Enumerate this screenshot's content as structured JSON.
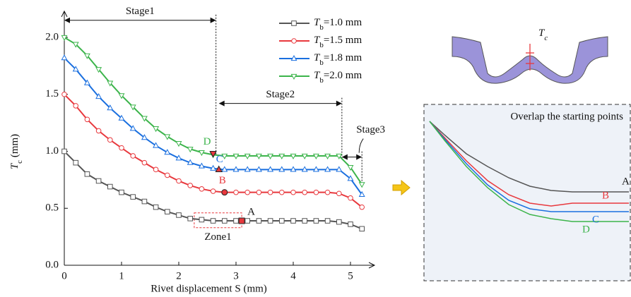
{
  "chart_data": {
    "type": "line",
    "x_label": "Rivet displacement S (mm)",
    "y_label": "Tc (mm)",
    "x": [
      0,
      0.2,
      0.4,
      0.6,
      0.8,
      1.0,
      1.2,
      1.4,
      1.6,
      1.8,
      2.0,
      2.2,
      2.4,
      2.6,
      2.8,
      3.0,
      3.2,
      3.4,
      3.6,
      3.8,
      4.0,
      4.2,
      4.4,
      4.6,
      4.8,
      5.0,
      5.2
    ],
    "series": [
      {
        "name": "Tb=1.0 mm",
        "color": "#555555",
        "marker": "square",
        "values": [
          1.0,
          0.9,
          0.8,
          0.74,
          0.69,
          0.64,
          0.6,
          0.56,
          0.51,
          0.47,
          0.44,
          0.41,
          0.4,
          0.39,
          0.39,
          0.39,
          0.39,
          0.39,
          0.39,
          0.39,
          0.39,
          0.39,
          0.39,
          0.39,
          0.38,
          0.36,
          0.32
        ]
      },
      {
        "name": "Tb=1.5 mm",
        "color": "#e8383d",
        "marker": "circle",
        "values": [
          1.5,
          1.4,
          1.28,
          1.18,
          1.1,
          1.03,
          0.96,
          0.9,
          0.84,
          0.79,
          0.74,
          0.7,
          0.67,
          0.65,
          0.64,
          0.64,
          0.64,
          0.64,
          0.64,
          0.64,
          0.64,
          0.64,
          0.64,
          0.64,
          0.63,
          0.59,
          0.51
        ]
      },
      {
        "name": "Tb=1.8 mm",
        "color": "#1a6fdf",
        "marker": "triangle-up",
        "values": [
          1.82,
          1.72,
          1.6,
          1.48,
          1.38,
          1.29,
          1.2,
          1.12,
          1.05,
          0.99,
          0.94,
          0.9,
          0.87,
          0.85,
          0.84,
          0.84,
          0.84,
          0.84,
          0.84,
          0.84,
          0.84,
          0.84,
          0.84,
          0.84,
          0.84,
          0.76,
          0.62
        ]
      },
      {
        "name": "Tb=2.0 mm",
        "color": "#3cb44b",
        "marker": "triangle-down",
        "values": [
          2.0,
          1.94,
          1.84,
          1.72,
          1.6,
          1.49,
          1.39,
          1.29,
          1.2,
          1.13,
          1.07,
          1.02,
          0.99,
          0.97,
          0.96,
          0.96,
          0.96,
          0.96,
          0.96,
          0.96,
          0.96,
          0.96,
          0.96,
          0.96,
          0.96,
          0.86,
          0.71
        ]
      }
    ],
    "xlim": [
      0,
      5.42
    ],
    "ylim": [
      0,
      2.23
    ],
    "xticks": [
      0,
      1,
      2,
      3,
      4,
      5
    ],
    "yticks": [
      {
        "value": 0,
        "label": "0.0"
      },
      0.5,
      {
        "value": 1,
        "label": "1.0"
      },
      1.5,
      {
        "value": 2,
        "label": "2.0"
      }
    ],
    "annotations": [
      {
        "text": "A",
        "x": 3.1,
        "y": 0.39,
        "marker": "square",
        "color": "#111111"
      },
      {
        "text": "B",
        "x": 2.8,
        "y": 0.64,
        "marker": "circle",
        "color": "#e8383d"
      },
      {
        "text": "C",
        "x": 2.7,
        "y": 0.84,
        "marker": "triangle-up",
        "color": "#1a6fdf"
      },
      {
        "text": "D",
        "x": 2.6,
        "y": 0.98,
        "marker": "triangle-down",
        "color": "#3cb44b"
      }
    ],
    "stages": [
      {
        "label": "Stage1",
        "x": [
          0,
          2.65
        ],
        "y": 2.15
      },
      {
        "label": "Stage2",
        "x": [
          2.7,
          4.85
        ],
        "y": 1.42
      },
      {
        "label": "Stage3",
        "x": [
          4.85,
          5.2
        ],
        "y": 0.95
      }
    ],
    "zone": {
      "label": "Zone1",
      "x": [
        2.27,
        3.1
      ],
      "y": [
        0.33,
        0.46
      ]
    }
  },
  "schematic_label": "Tc",
  "inset": {
    "title": "Overlap the starting points"
  }
}
